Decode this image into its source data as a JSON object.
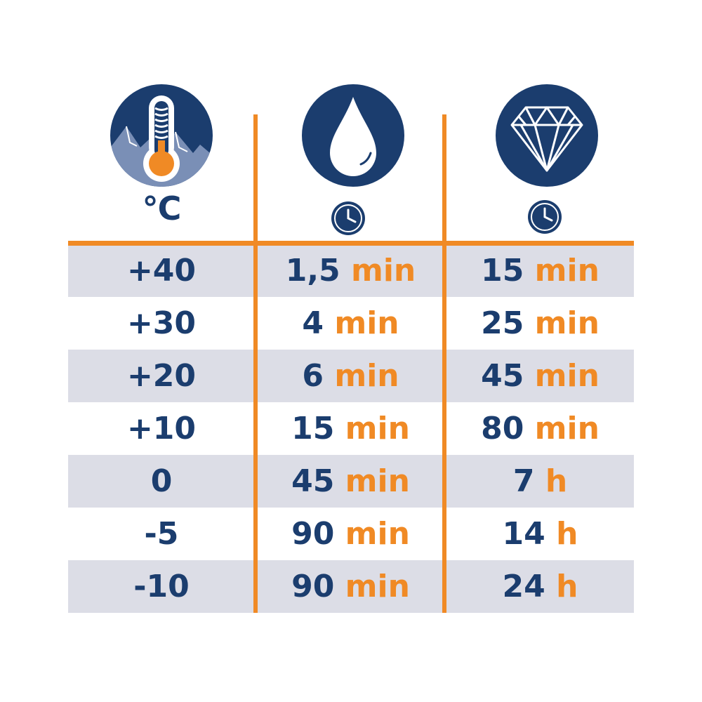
{
  "colors": {
    "navy": "#1b3d6e",
    "orange": "#f08a25",
    "row_shade": "#dcdde6",
    "mountain": "#7a8fb6"
  },
  "header": {
    "col_temperature": {
      "icon": "thermometer-icon",
      "label": "°C"
    },
    "col_wet": {
      "icon": "water-drop-icon",
      "sub_icon": "clock-icon"
    },
    "col_dry": {
      "icon": "diamond-icon",
      "sub_icon": "clock-icon"
    }
  },
  "rows": [
    {
      "temp": "+40",
      "wet_value": "1,5",
      "wet_unit": "min",
      "dry_value": "15",
      "dry_unit": "min"
    },
    {
      "temp": "+30",
      "wet_value": "4",
      "wet_unit": "min",
      "dry_value": "25",
      "dry_unit": "min"
    },
    {
      "temp": "+20",
      "wet_value": "6",
      "wet_unit": "min",
      "dry_value": "45",
      "dry_unit": "min"
    },
    {
      "temp": "+10",
      "wet_value": "15",
      "wet_unit": "min",
      "dry_value": "80",
      "dry_unit": "min"
    },
    {
      "temp": "0",
      "wet_value": "45",
      "wet_unit": "min",
      "dry_value": "7",
      "dry_unit": "h"
    },
    {
      "temp": "-5",
      "wet_value": "90",
      "wet_unit": "min",
      "dry_value": "14",
      "dry_unit": "h"
    },
    {
      "temp": "-10",
      "wet_value": "90",
      "wet_unit": "min",
      "dry_value": "24",
      "dry_unit": "h"
    }
  ]
}
